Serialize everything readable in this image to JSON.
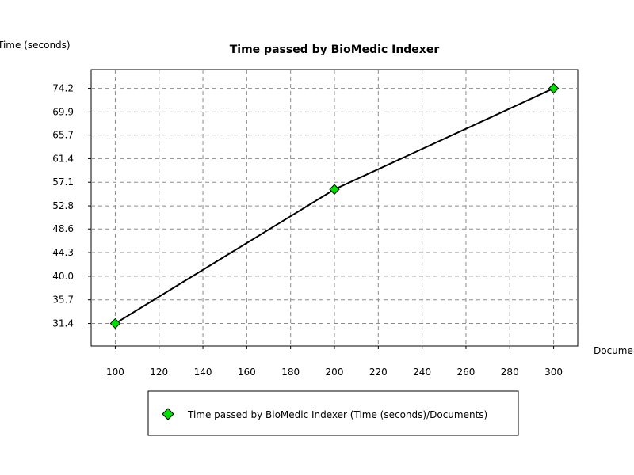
{
  "chart_data": {
    "type": "line",
    "title": "Time passed by BioMedic Indexer",
    "xlabel": "Documents",
    "ylabel": "Time (seconds)",
    "xlim": [
      89,
      311
    ],
    "ylim": [
      27.3,
      77.6
    ],
    "x_ticks": [
      "100",
      "120",
      "140",
      "160",
      "180",
      "200",
      "220",
      "240",
      "260",
      "280",
      "300"
    ],
    "y_ticks": [
      "31.4",
      "35.7",
      "40.0",
      "44.3",
      "48.6",
      "52.8",
      "57.1",
      "61.4",
      "65.7",
      "69.9",
      "74.2"
    ],
    "grid": true,
    "legend_position": "bottom",
    "series": [
      {
        "name": "Time passed by BioMedic Indexer (Time (seconds)/Documents)",
        "color": "#00e000",
        "marker": "diamond",
        "x": [
          100,
          200,
          300
        ],
        "y": [
          31.4,
          55.8,
          74.2
        ]
      }
    ]
  }
}
